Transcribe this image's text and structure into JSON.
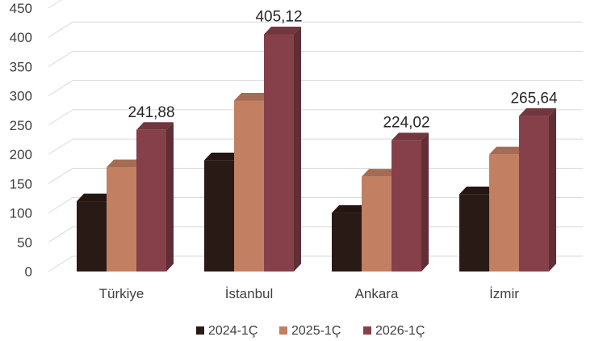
{
  "chart_data": {
    "type": "bar",
    "categories": [
      "Türkiye",
      "İstanbul",
      "Ankara",
      "İzmir"
    ],
    "series": [
      {
        "name": "2024-1Ç",
        "values": [
          120,
          190,
          100,
          132
        ],
        "color": "#2a1a16"
      },
      {
        "name": "2025-1Ç",
        "values": [
          178,
          292,
          162,
          200
        ],
        "color": "#c27f62"
      },
      {
        "name": "2026-1Ç",
        "values": [
          241.88,
          405.12,
          224.02,
          265.64
        ],
        "color": "#86404a"
      }
    ],
    "data_labels": [
      "241,88",
      "405,12",
      "224,02",
      "265,64"
    ],
    "ylim": [
      0,
      450
    ],
    "yticks": [
      "0",
      "50",
      "100",
      "150",
      "200",
      "250",
      "300",
      "350",
      "400",
      "450"
    ],
    "grid": true,
    "legend_position": "bottom",
    "title": "",
    "xlabel": "",
    "ylabel": ""
  }
}
